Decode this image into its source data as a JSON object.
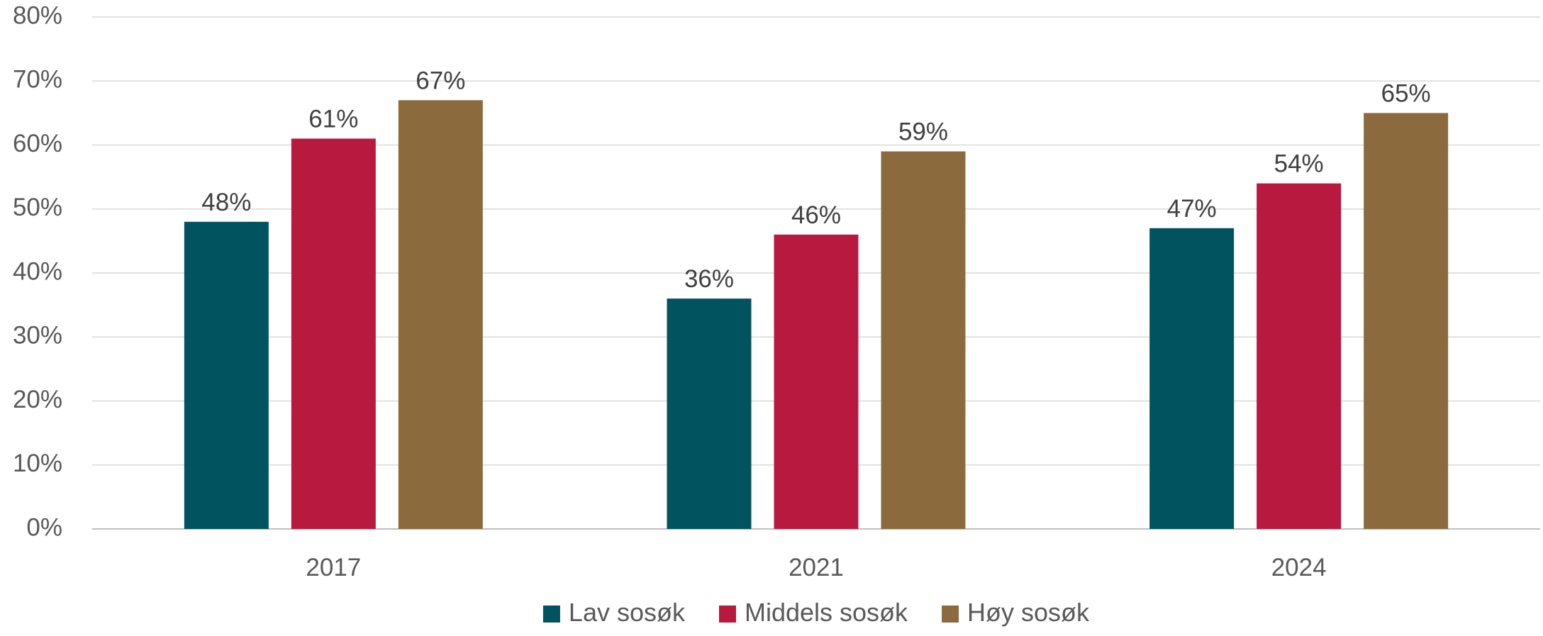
{
  "chart_data": {
    "type": "bar",
    "categories": [
      "2017",
      "2021",
      "2024"
    ],
    "series": [
      {
        "name": "Lav sosøk",
        "color": "#00535F",
        "values": [
          48,
          36,
          47
        ]
      },
      {
        "name": "Middels sosøk",
        "color": "#B8193F",
        "values": [
          61,
          46,
          54
        ]
      },
      {
        "name": "Høy sosøk",
        "color": "#8B6B3E",
        "values": [
          67,
          59,
          65
        ]
      }
    ],
    "data_labels": [
      [
        "48%",
        "36%",
        "47%"
      ],
      [
        "61%",
        "46%",
        "54%"
      ],
      [
        "67%",
        "59%",
        "65%"
      ]
    ],
    "y_ticks": [
      "0%",
      "10%",
      "20%",
      "30%",
      "40%",
      "50%",
      "60%",
      "70%",
      "80%"
    ],
    "ylim": [
      0,
      80
    ],
    "y_tick_step": 10,
    "title": "",
    "xlabel": "",
    "ylabel": "",
    "grid": true,
    "legend_position": "bottom"
  }
}
